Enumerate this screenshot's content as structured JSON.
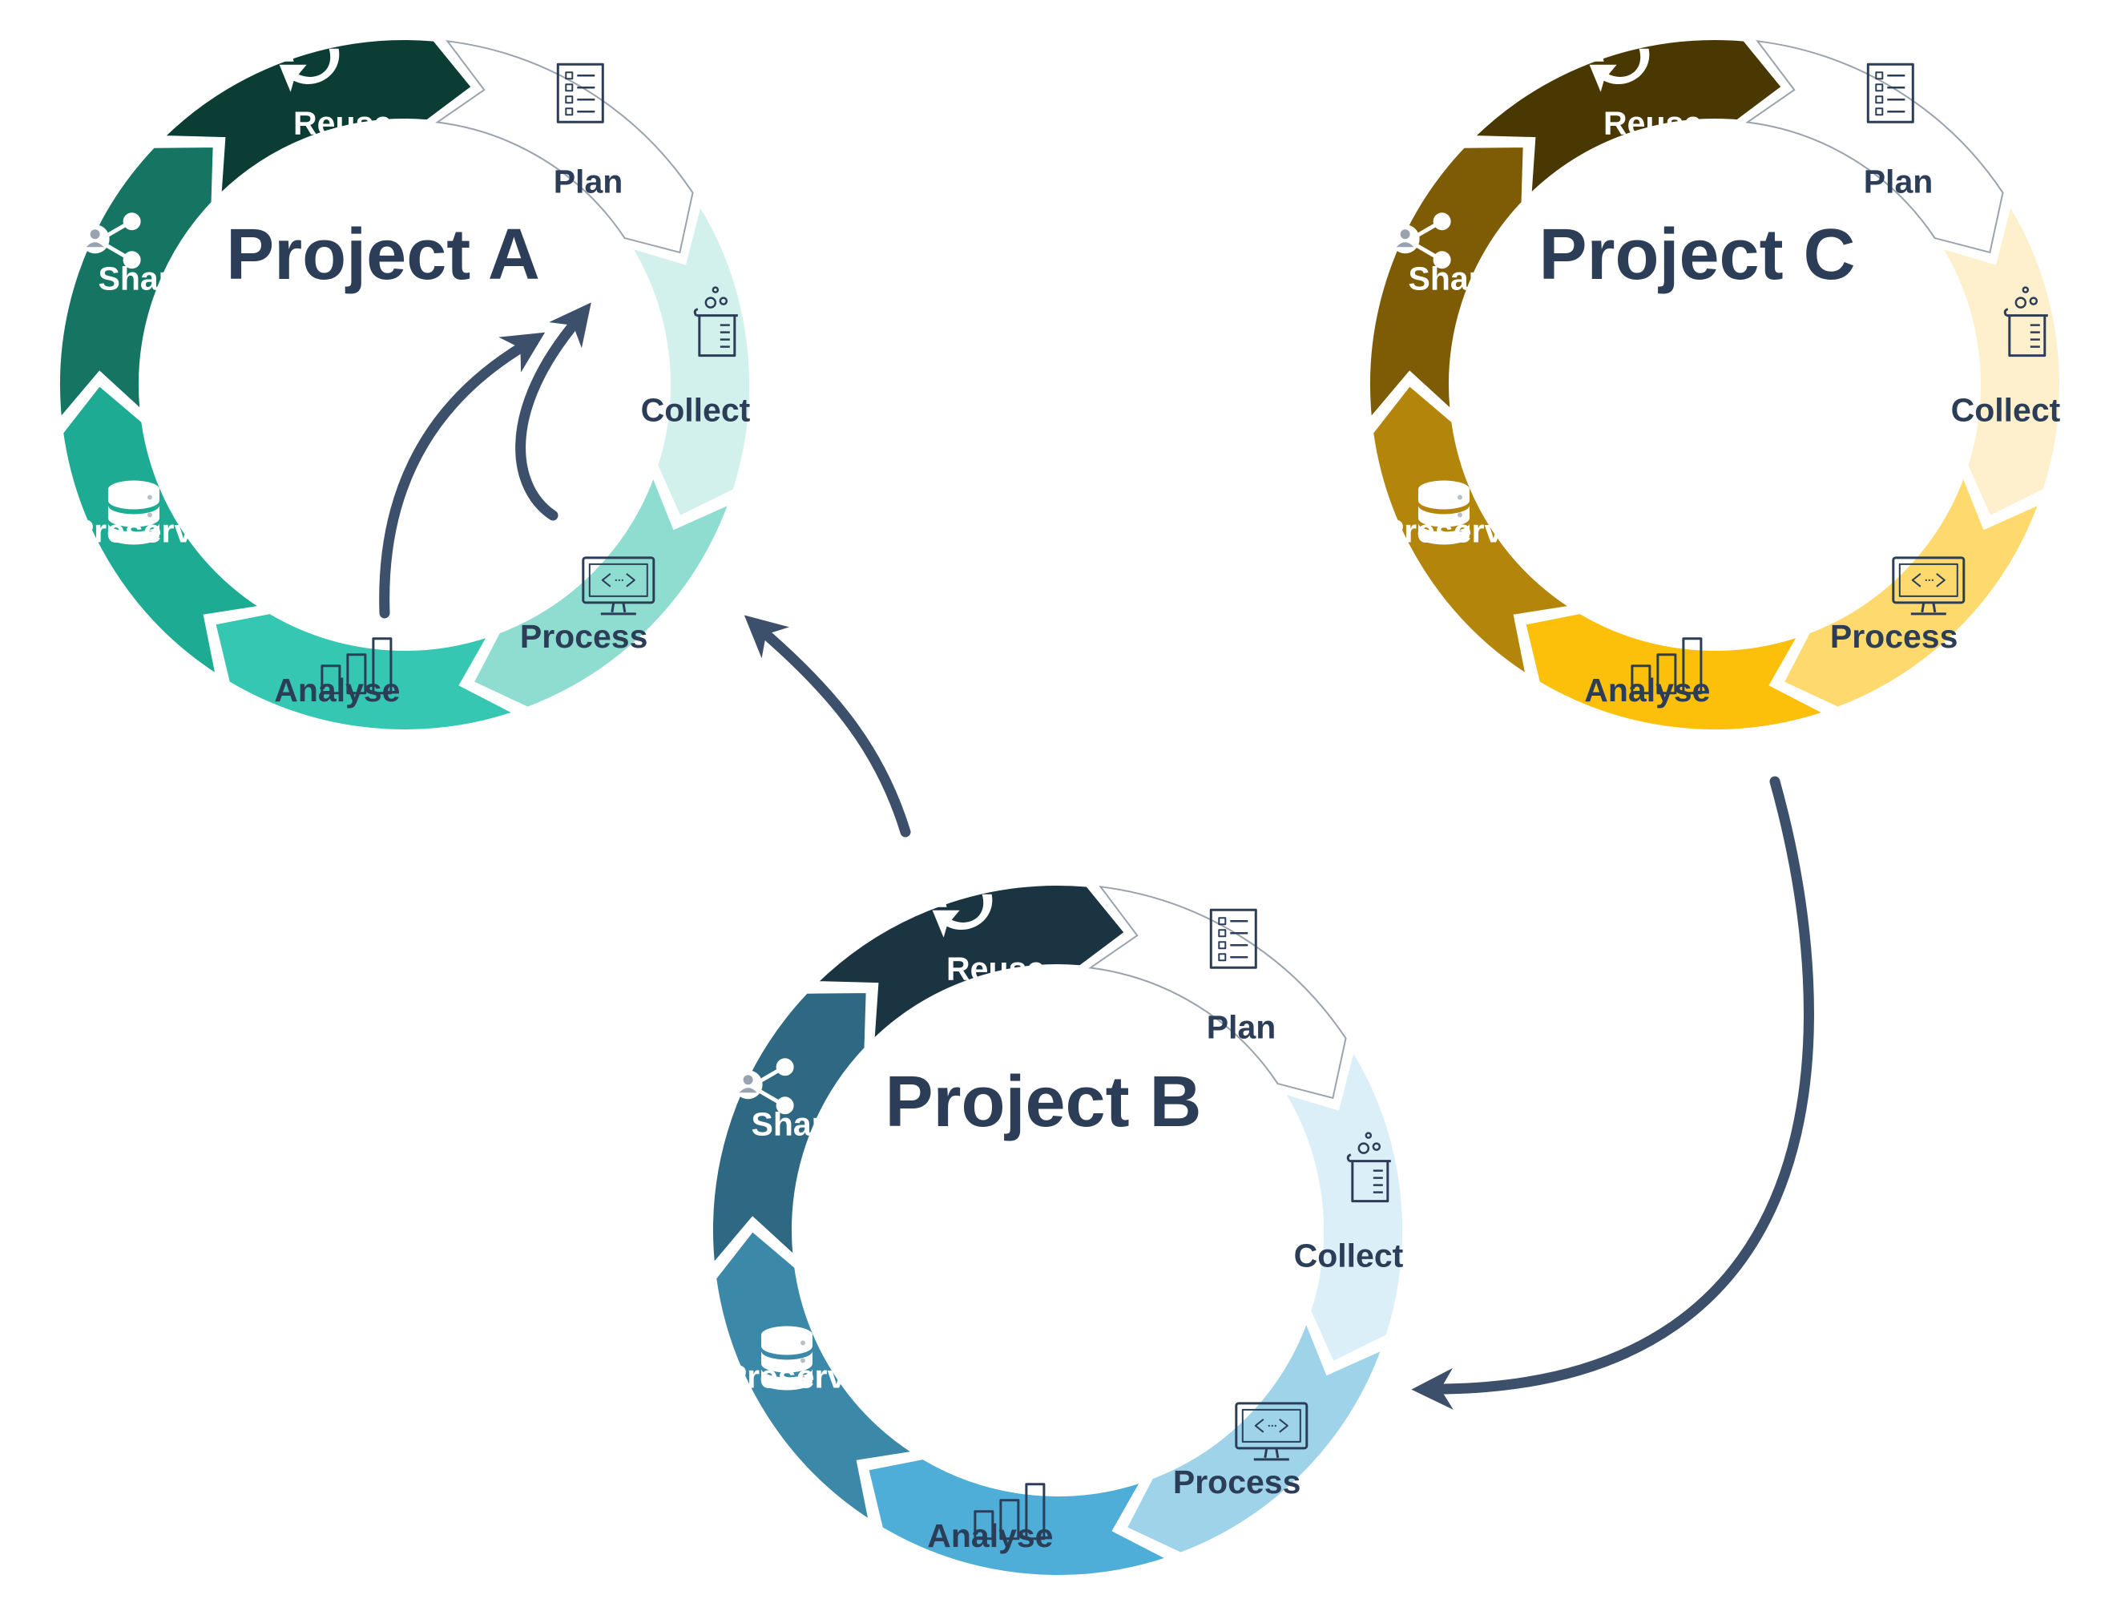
{
  "projects": [
    {
      "id": "a",
      "title": "Project A",
      "colors": [
        "#ffffff",
        "#d2f1ec",
        "#8fddd0",
        "#35c7b1",
        "#1eab93",
        "#157562",
        "#0b3d35"
      ],
      "label_colors": [
        "#2c3e57",
        "#2c3e57",
        "#2c3e57",
        "#2c3e57",
        "#ffffff",
        "#ffffff",
        "#ffffff"
      ]
    },
    {
      "id": "b",
      "title": "Project B",
      "colors": [
        "#ffffff",
        "#dbeff8",
        "#9fd3ea",
        "#4eaed8",
        "#3b88a8",
        "#2f6883",
        "#1b3442"
      ],
      "label_colors": [
        "#2c3e57",
        "#2c3e57",
        "#2c3e57",
        "#2c3e57",
        "#ffffff",
        "#ffffff",
        "#ffffff"
      ]
    },
    {
      "id": "c",
      "title": "Project C",
      "colors": [
        "#ffffff",
        "#fef0cc",
        "#fdd96e",
        "#fcbf0a",
        "#b3850a",
        "#7d5c05",
        "#4a3803"
      ],
      "label_colors": [
        "#2c3e57",
        "#2c3e57",
        "#2c3e57",
        "#2c3e57",
        "#ffffff",
        "#ffffff",
        "#ffffff"
      ]
    }
  ],
  "stages": [
    {
      "label": "Plan",
      "icon": "checklist-icon"
    },
    {
      "label": "Collect",
      "icon": "beaker-icon"
    },
    {
      "label": "Process",
      "icon": "monitor-code-icon"
    },
    {
      "label": "Analyse",
      "icon": "bar-chart-icon"
    },
    {
      "label": "Preserve",
      "icon": "database-icon"
    },
    {
      "label": "Share",
      "icon": "share-user-icon"
    },
    {
      "label": "Reuse",
      "icon": "refresh-icon"
    }
  ],
  "arrow_color": "#3d506b",
  "icon_dark_color": "#2c3e57",
  "icon_light_color": "#ffffff"
}
